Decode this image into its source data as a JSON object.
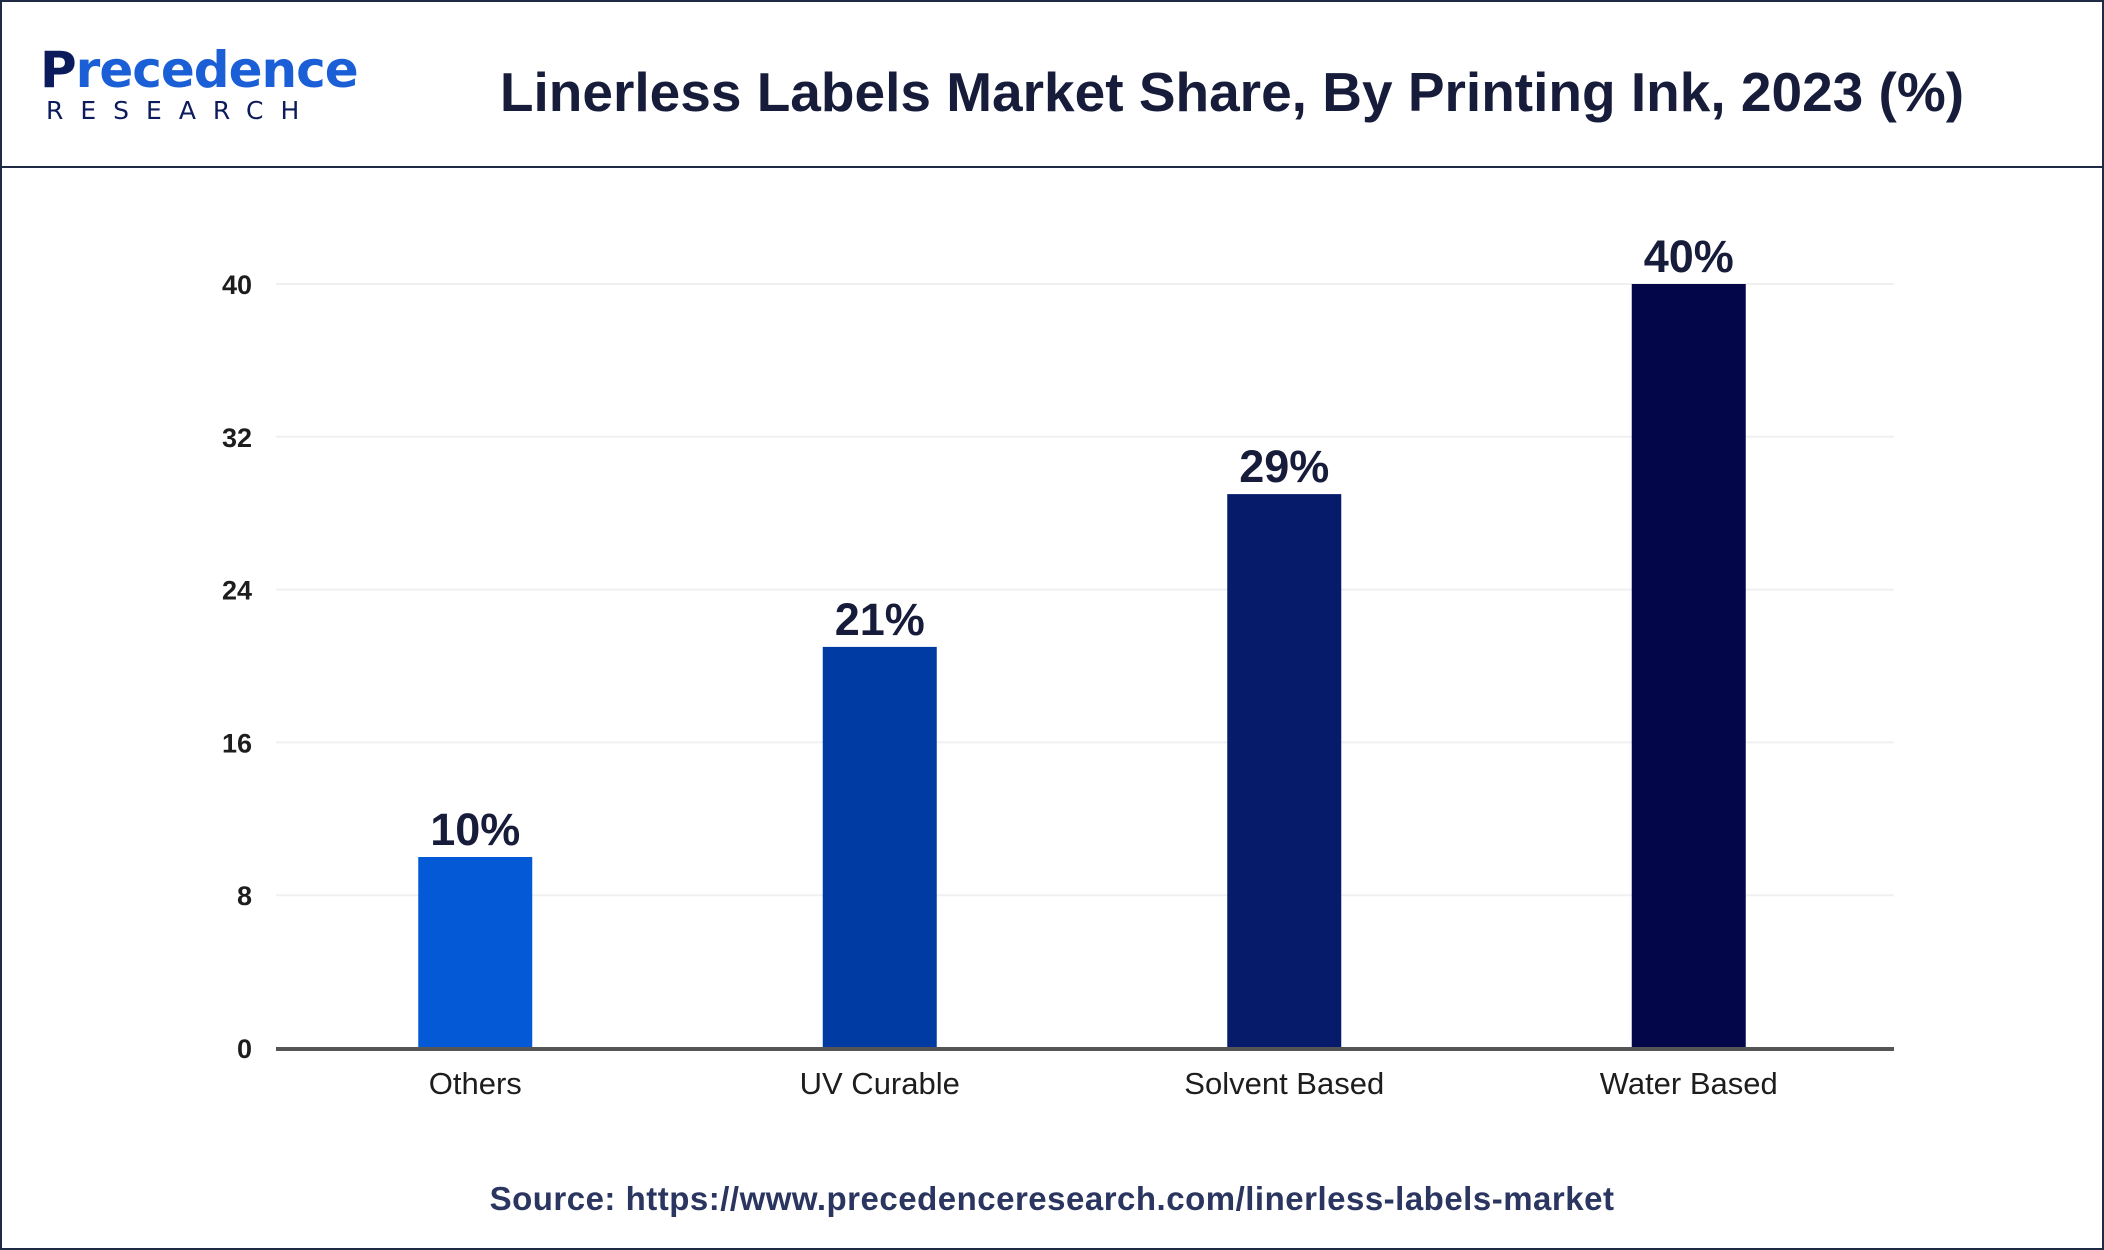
{
  "logo": {
    "top_prefix": "P",
    "top_accent": "recedence",
    "bottom": "RESEARCH"
  },
  "colors": {
    "border": "#1f2a44",
    "bars": [
      "#0459d6",
      "#003aa3",
      "#061c6b",
      "#03074a"
    ],
    "axis": "#555555",
    "grid": "#f0f0f0"
  },
  "chart_data": {
    "type": "bar",
    "title": "Linerless Labels Market Share, By Printing Ink, 2023 (%)",
    "categories": [
      "Others",
      "UV Curable",
      "Solvent Based",
      "Water Based"
    ],
    "values": [
      10,
      21,
      29,
      40
    ],
    "data_labels": [
      "10%",
      "21%",
      "29%",
      "40%"
    ],
    "ylim": [
      0,
      40
    ],
    "yticks": [
      0,
      8,
      16,
      24,
      32,
      40
    ],
    "xlabel": "",
    "ylabel": "",
    "grid": true,
    "legend": "none"
  },
  "source": "Source: https://www.precedenceresearch.com/linerless-labels-market"
}
